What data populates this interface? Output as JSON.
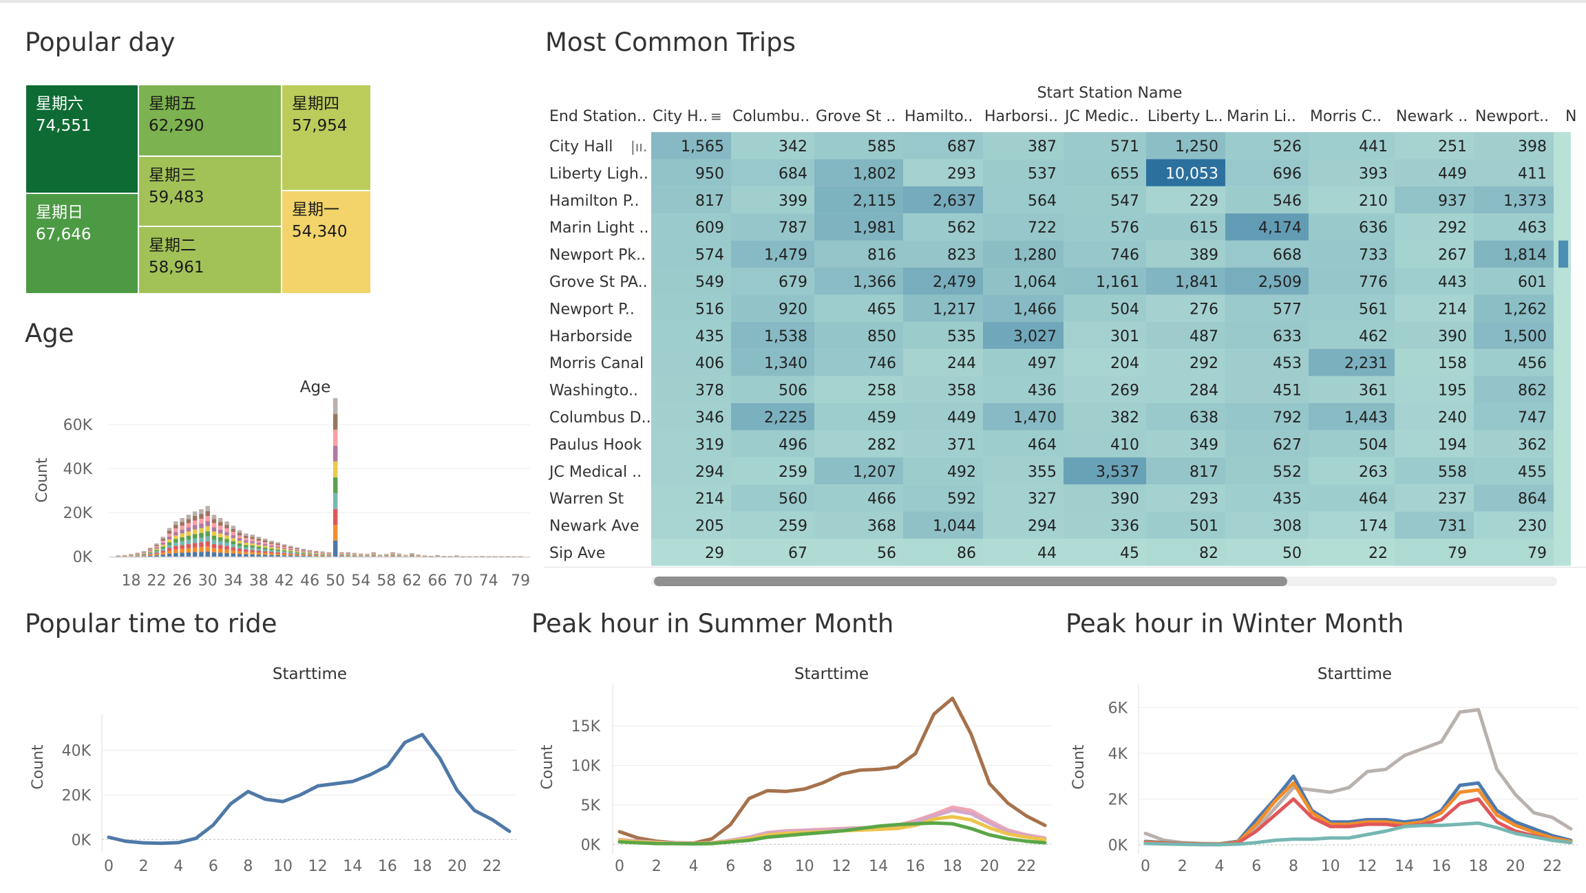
{
  "titles": {
    "popular_day": "Popular day",
    "age": "Age",
    "most_common_trips": "Most Common Trips",
    "popular_time": "Popular time to ride",
    "peak_summer": "Peak hour in Summer Month",
    "peak_winter": "Peak hour in Winter Month"
  },
  "colors": {
    "treemap": [
      "#0e6b33",
      "#4d9a45",
      "#7cb24f",
      "#a2c257",
      "#bccc5b",
      "#f2d46a"
    ],
    "heat_base": "#b2e0d5",
    "summer": [
      "#a5724c",
      "#f0a6b2",
      "#d4a6c9",
      "#eec34b",
      "#5aa646"
    ],
    "winter": [
      "#b9b1ad",
      "#4d79ad",
      "#f28e2b",
      "#e15759",
      "#76b7b2"
    ],
    "popular": "#4e79a7"
  },
  "chart_data": [
    {
      "id": "popular_day",
      "type": "treemap",
      "items": [
        {
          "label": "星期六",
          "value": 74551,
          "display": "74,551"
        },
        {
          "label": "星期日",
          "value": 67646,
          "display": "67,646"
        },
        {
          "label": "星期五",
          "value": 62290,
          "display": "62,290"
        },
        {
          "label": "星期三",
          "value": 59483,
          "display": "59,483"
        },
        {
          "label": "星期二",
          "value": 58961,
          "display": "58,961"
        },
        {
          "label": "星期四",
          "value": 57954,
          "display": "57,954"
        },
        {
          "label": "星期一",
          "value": 54340,
          "display": "54,340"
        }
      ]
    },
    {
      "id": "age",
      "type": "bar",
      "title": "Age",
      "ylabel": "Count",
      "ylim": [
        0,
        70000
      ],
      "yticks": [
        "60K",
        "40K",
        "20K",
        "0K"
      ],
      "ytick_values": [
        60000,
        40000,
        20000,
        0
      ],
      "xticks": [
        "18",
        "22",
        "26",
        "30",
        "34",
        "38",
        "42",
        "46",
        "50",
        "54",
        "58",
        "62",
        "66",
        "70",
        "74",
        "79"
      ],
      "stack_colors": [
        "#4e79a7",
        "#f28e2b",
        "#e15759",
        "#76b7b2",
        "#59a14f",
        "#edc948",
        "#b07aa1",
        "#ff9da7",
        "#9c755f",
        "#bab0ac"
      ],
      "x": [
        16,
        17,
        18,
        19,
        20,
        21,
        22,
        23,
        24,
        25,
        26,
        27,
        28,
        29,
        30,
        31,
        32,
        33,
        34,
        35,
        36,
        37,
        38,
        39,
        40,
        41,
        42,
        43,
        44,
        45,
        46,
        47,
        48,
        49,
        50,
        51,
        52,
        53,
        54,
        55,
        56,
        57,
        58,
        59,
        60,
        61,
        62,
        63,
        64,
        65,
        66,
        67,
        68,
        69,
        70,
        71,
        72,
        73,
        74,
        75,
        76,
        77,
        78,
        79
      ],
      "values": [
        500,
        700,
        1200,
        1800,
        2500,
        4000,
        6000,
        9000,
        13000,
        16000,
        17500,
        19000,
        20500,
        21500,
        23000,
        19000,
        17500,
        16000,
        14000,
        12000,
        10500,
        10000,
        9000,
        8200,
        7200,
        6500,
        5600,
        4900,
        4200,
        3500,
        3000,
        2600,
        2300,
        2000,
        72000,
        2000,
        2000,
        1700,
        1400,
        1300,
        2000,
        900,
        1200,
        2000,
        1400,
        800,
        1600,
        900,
        500,
        300,
        700,
        200,
        200,
        500,
        100,
        100,
        100,
        200,
        100,
        100,
        100,
        100,
        100,
        100
      ]
    },
    {
      "id": "most_common_trips",
      "type": "heatmap",
      "column_group_label": "Start Station Name",
      "row_header": "End Station..",
      "columns": [
        "City H..",
        "Columbu..",
        "Grove St ..",
        "Hamilto..",
        "Harborsi..",
        "JC Medic..",
        "Liberty L..",
        "Marin Li..",
        "Morris C..",
        "Newark ..",
        "Newport..",
        "N"
      ],
      "rows": [
        "City Hall",
        "Liberty Ligh..",
        "Hamilton P..",
        "Marin Light ..",
        "Newport Pk..",
        "Grove St PA..",
        "Newport P..",
        "Harborside",
        "Morris Canal",
        "Washingto..",
        "Columbus D..",
        "Paulus Hook",
        "JC Medical ..",
        "Warren St",
        "Newark Ave",
        "Sip Ave"
      ],
      "values": [
        [
          1565,
          342,
          585,
          687,
          387,
          571,
          1250,
          526,
          441,
          251,
          398
        ],
        [
          950,
          684,
          1802,
          293,
          537,
          655,
          10053,
          696,
          393,
          449,
          411
        ],
        [
          817,
          399,
          2115,
          2637,
          564,
          547,
          229,
          546,
          210,
          937,
          1373
        ],
        [
          609,
          787,
          1981,
          562,
          722,
          576,
          615,
          4174,
          636,
          292,
          463
        ],
        [
          574,
          1479,
          816,
          823,
          1280,
          746,
          389,
          668,
          733,
          267,
          1814
        ],
        [
          549,
          679,
          1366,
          2479,
          1064,
          1161,
          1841,
          2509,
          776,
          443,
          601
        ],
        [
          516,
          920,
          465,
          1217,
          1466,
          504,
          276,
          577,
          561,
          214,
          1262
        ],
        [
          435,
          1538,
          850,
          535,
          3027,
          301,
          487,
          633,
          462,
          390,
          1500
        ],
        [
          406,
          1340,
          746,
          244,
          497,
          204,
          292,
          453,
          2231,
          158,
          456
        ],
        [
          378,
          506,
          258,
          358,
          436,
          269,
          284,
          451,
          361,
          195,
          862
        ],
        [
          346,
          2225,
          459,
          449,
          1470,
          382,
          638,
          792,
          1443,
          240,
          747
        ],
        [
          319,
          496,
          282,
          371,
          464,
          410,
          349,
          627,
          504,
          194,
          362
        ],
        [
          294,
          259,
          1207,
          492,
          355,
          3537,
          817,
          552,
          263,
          558,
          455
        ],
        [
          214,
          560,
          466,
          592,
          327,
          390,
          293,
          435,
          464,
          237,
          864
        ],
        [
          205,
          259,
          368,
          1044,
          294,
          336,
          501,
          308,
          174,
          731,
          230
        ],
        [
          29,
          67,
          56,
          86,
          44,
          45,
          82,
          50,
          22,
          79,
          79
        ]
      ],
      "display": [
        [
          "1,565",
          "342",
          "585",
          "687",
          "387",
          "571",
          "1,250",
          "526",
          "441",
          "251",
          "398"
        ],
        [
          "950",
          "684",
          "1,802",
          "293",
          "537",
          "655",
          "10,053",
          "696",
          "393",
          "449",
          "411"
        ],
        [
          "817",
          "399",
          "2,115",
          "2,637",
          "564",
          "547",
          "229",
          "546",
          "210",
          "937",
          "1,373"
        ],
        [
          "609",
          "787",
          "1,981",
          "562",
          "722",
          "576",
          "615",
          "4,174",
          "636",
          "292",
          "463"
        ],
        [
          "574",
          "1,479",
          "816",
          "823",
          "1,280",
          "746",
          "389",
          "668",
          "733",
          "267",
          "1,814"
        ],
        [
          "549",
          "679",
          "1,366",
          "2,479",
          "1,064",
          "1,161",
          "1,841",
          "2,509",
          "776",
          "443",
          "601"
        ],
        [
          "516",
          "920",
          "465",
          "1,217",
          "1,466",
          "504",
          "276",
          "577",
          "561",
          "214",
          "1,262"
        ],
        [
          "435",
          "1,538",
          "850",
          "535",
          "3,027",
          "301",
          "487",
          "633",
          "462",
          "390",
          "1,500"
        ],
        [
          "406",
          "1,340",
          "746",
          "244",
          "497",
          "204",
          "292",
          "453",
          "2,231",
          "158",
          "456"
        ],
        [
          "378",
          "506",
          "258",
          "358",
          "436",
          "269",
          "284",
          "451",
          "361",
          "195",
          "862"
        ],
        [
          "346",
          "2,225",
          "459",
          "449",
          "1,470",
          "382",
          "638",
          "792",
          "1,443",
          "240",
          "747"
        ],
        [
          "319",
          "496",
          "282",
          "371",
          "464",
          "410",
          "349",
          "627",
          "504",
          "194",
          "362"
        ],
        [
          "294",
          "259",
          "1,207",
          "492",
          "355",
          "3,537",
          "817",
          "552",
          "263",
          "558",
          "455"
        ],
        [
          "214",
          "560",
          "466",
          "592",
          "327",
          "390",
          "293",
          "435",
          "464",
          "237",
          "864"
        ],
        [
          "205",
          "259",
          "368",
          "1,044",
          "294",
          "336",
          "501",
          "308",
          "174",
          "731",
          "230"
        ],
        [
          "29",
          "67",
          "56",
          "86",
          "44",
          "45",
          "82",
          "50",
          "22",
          "79",
          "79"
        ]
      ]
    },
    {
      "id": "popular_time",
      "type": "line",
      "title": "Starttime",
      "ylabel": "Count",
      "ylim": [
        -3000,
        50000
      ],
      "yticks": [
        "40K",
        "20K",
        "0K"
      ],
      "ytick_values": [
        40000,
        20000,
        0
      ],
      "xticks": [
        "0",
        "2",
        "4",
        "6",
        "8",
        "10",
        "12",
        "14",
        "16",
        "18",
        "20",
        "22"
      ],
      "x": [
        0,
        1,
        2,
        3,
        4,
        5,
        6,
        7,
        8,
        9,
        10,
        11,
        12,
        13,
        14,
        15,
        16,
        17,
        18,
        19,
        20,
        21,
        22,
        23
      ],
      "values": [
        1000,
        -800,
        -1500,
        -1700,
        -1400,
        500,
        6500,
        16000,
        21500,
        18000,
        17000,
        20000,
        24000,
        25000,
        26000,
        29000,
        33000,
        43500,
        47000,
        36500,
        22000,
        13000,
        9000,
        3700
      ]
    },
    {
      "id": "peak_summer",
      "type": "line",
      "title": "Starttime",
      "ylabel": "Count",
      "ylim": [
        -500,
        18500
      ],
      "yticks": [
        "15K",
        "10K",
        "5K",
        "0K"
      ],
      "ytick_values": [
        15000,
        10000,
        5000,
        0
      ],
      "xticks": [
        "0",
        "2",
        "4",
        "6",
        "8",
        "10",
        "12",
        "14",
        "16",
        "18",
        "20",
        "22"
      ],
      "x": [
        0,
        1,
        2,
        3,
        4,
        5,
        6,
        7,
        8,
        9,
        10,
        11,
        12,
        13,
        14,
        15,
        16,
        17,
        18,
        19,
        20,
        21,
        22,
        23
      ],
      "series": [
        {
          "values": [
            1600,
            800,
            400,
            200,
            150,
            700,
            2500,
            5800,
            6800,
            6700,
            7000,
            7800,
            8900,
            9400,
            9500,
            9800,
            11500,
            16500,
            18500,
            14000,
            7700,
            5200,
            3600,
            2400
          ]
        },
        {
          "values": [
            600,
            400,
            250,
            150,
            100,
            200,
            500,
            900,
            1500,
            1700,
            1800,
            1900,
            2000,
            2100,
            2200,
            2400,
            3000,
            3800,
            4700,
            4300,
            3000,
            1800,
            1200,
            800
          ]
        },
        {
          "values": [
            600,
            400,
            250,
            150,
            100,
            200,
            500,
            900,
            1400,
            1600,
            1700,
            1800,
            1900,
            2000,
            2100,
            2300,
            2800,
            3600,
            4300,
            3900,
            2700,
            1600,
            1100,
            700
          ]
        },
        {
          "values": [
            500,
            300,
            200,
            100,
            80,
            150,
            400,
            700,
            1200,
            1400,
            1500,
            1600,
            1700,
            1800,
            1900,
            2000,
            2400,
            3200,
            3500,
            3100,
            2100,
            1300,
            900,
            600
          ]
        },
        {
          "values": [
            300,
            200,
            100,
            80,
            60,
            100,
            300,
            500,
            900,
            1100,
            1300,
            1500,
            1700,
            2000,
            2300,
            2500,
            2600,
            2700,
            2600,
            2000,
            1200,
            700,
            400,
            200
          ]
        }
      ]
    },
    {
      "id": "peak_winter",
      "type": "line",
      "title": "Starttime",
      "ylabel": "Count",
      "ylim": [
        -150,
        6400
      ],
      "yticks": [
        "6K",
        "4K",
        "2K",
        "0K"
      ],
      "ytick_values": [
        6000,
        4000,
        2000,
        0
      ],
      "xticks": [
        "0",
        "2",
        "4",
        "6",
        "8",
        "10",
        "12",
        "14",
        "16",
        "18",
        "20",
        "22"
      ],
      "x": [
        0,
        1,
        2,
        3,
        4,
        5,
        6,
        7,
        8,
        9,
        10,
        11,
        12,
        13,
        14,
        15,
        16,
        17,
        18,
        19,
        20,
        21,
        22,
        23
      ],
      "series": [
        {
          "values": [
            500,
            200,
            100,
            60,
            50,
            150,
            700,
            1600,
            2500,
            2400,
            2300,
            2500,
            3200,
            3300,
            3900,
            4200,
            4500,
            5800,
            5900,
            3300,
            2200,
            1400,
            1200,
            700
          ]
        },
        {
          "values": [
            150,
            100,
            60,
            40,
            30,
            150,
            1100,
            2000,
            3000,
            1500,
            1000,
            1000,
            1100,
            1100,
            1000,
            1100,
            1500,
            2600,
            2700,
            1500,
            1000,
            700,
            400,
            200
          ]
        },
        {
          "values": [
            120,
            80,
            50,
            30,
            20,
            120,
            900,
            1900,
            2700,
            1400,
            900,
            900,
            1000,
            1000,
            900,
            1000,
            1400,
            2300,
            2400,
            1300,
            850,
            550,
            300,
            150
          ]
        },
        {
          "values": [
            90,
            60,
            40,
            20,
            10,
            80,
            600,
            1300,
            2000,
            1200,
            800,
            800,
            900,
            900,
            800,
            900,
            1100,
            1800,
            2000,
            1000,
            600,
            400,
            200,
            100
          ]
        },
        {
          "values": [
            60,
            40,
            20,
            10,
            10,
            30,
            100,
            200,
            250,
            250,
            300,
            300,
            450,
            600,
            800,
            850,
            850,
            900,
            950,
            750,
            500,
            350,
            200,
            100
          ]
        }
      ]
    }
  ]
}
